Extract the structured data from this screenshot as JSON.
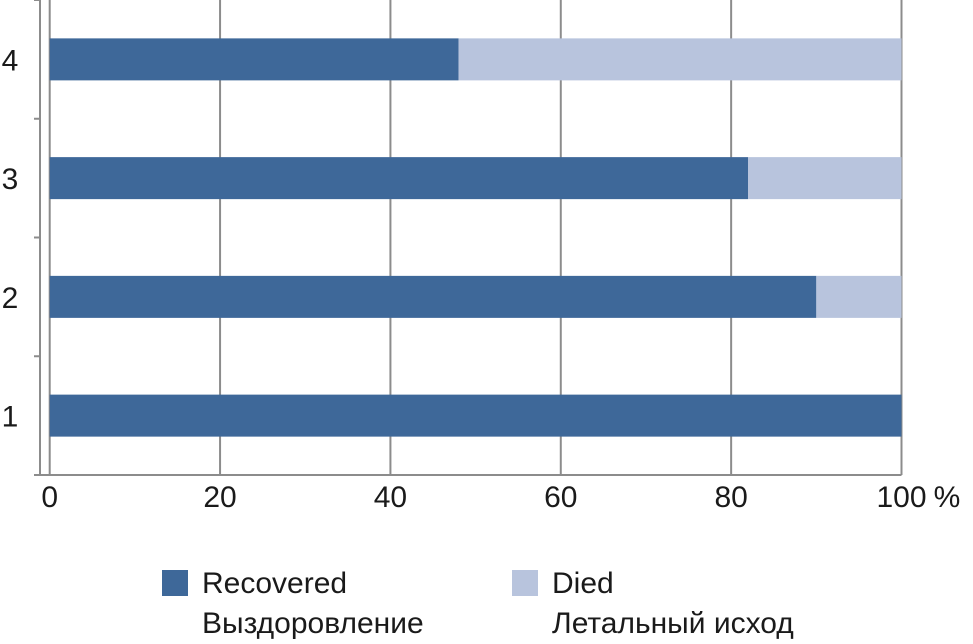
{
  "chart_data": {
    "type": "bar",
    "orientation": "horizontal",
    "stacked": true,
    "categories": [
      "1",
      "2",
      "3",
      "4"
    ],
    "series": [
      {
        "name": "Recovered / Выздоровление",
        "values": [
          100,
          90,
          82,
          48
        ],
        "color": "#3e6899"
      },
      {
        "name": "Died / Летальный исход",
        "values": [
          0,
          10,
          18,
          52
        ],
        "color": "#b8c4dd"
      }
    ],
    "xlim": [
      0,
      100
    ],
    "xticks": [
      "0",
      "20",
      "40",
      "60",
      "80",
      "100"
    ],
    "xunit": "%",
    "grid": "vertical",
    "legend_position": "bottom",
    "legend": [
      {
        "line1": "Recovered",
        "line2": "Выздоровление",
        "color": "#3e6899"
      },
      {
        "line1": "Died",
        "line2": "Летальный исход",
        "color": "#b8c4dd"
      }
    ]
  }
}
